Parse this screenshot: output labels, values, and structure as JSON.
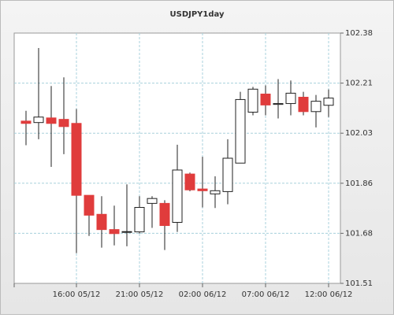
{
  "chart_data": {
    "type": "candlestick",
    "title": "USDJPY1day",
    "categories": [
      null,
      null,
      null,
      null,
      "16:00 05/12",
      null,
      null,
      null,
      null,
      "21:00 05/12",
      null,
      null,
      null,
      null,
      "02:00 06/12",
      null,
      null,
      null,
      null,
      "07:00 06/12",
      null,
      null,
      null,
      null,
      "12:00 06/12"
    ],
    "open": [
      102.074,
      102.069,
      102.085,
      102.08,
      102.066,
      101.816,
      101.75,
      101.697,
      101.688,
      101.689,
      101.788,
      101.788,
      101.722,
      101.89,
      101.838,
      101.821,
      101.829,
      101.928,
      102.105,
      102.168,
      102.132,
      102.135,
      102.157,
      102.107,
      102.129
    ],
    "high": [
      102.11,
      102.328,
      102.196,
      102.226,
      102.116,
      101.816,
      101.813,
      101.78,
      101.854,
      101.813,
      101.813,
      101.799,
      101.992,
      101.895,
      101.95,
      101.882,
      102.011,
      102.176,
      102.193,
      102.198,
      102.22,
      102.215,
      102.176,
      102.165,
      102.184
    ],
    "low": [
      101.99,
      102.011,
      101.915,
      101.959,
      101.615,
      101.675,
      101.634,
      101.642,
      101.639,
      101.683,
      101.703,
      101.626,
      101.689,
      101.83,
      101.774,
      101.772,
      101.785,
      101.928,
      102.094,
      102.094,
      102.083,
      102.094,
      102.094,
      102.052,
      102.088
    ],
    "close": [
      102.066,
      102.088,
      102.066,
      102.055,
      101.816,
      101.747,
      101.697,
      101.683,
      101.69,
      101.774,
      101.805,
      101.711,
      101.904,
      101.835,
      101.832,
      101.832,
      101.945,
      102.149,
      102.185,
      102.13,
      102.135,
      102.171,
      102.107,
      102.143,
      102.154
    ],
    "up_color": "#ffffff",
    "down_color": "#e03c3c",
    "ylim": [
      101.51,
      102.38
    ],
    "yticks": [
      101.51,
      {
        "value": 101.684,
        "label": "101.68"
      },
      {
        "value": 101.858,
        "label": "101.86"
      },
      {
        "value": 102.032,
        "label": "102.03"
      },
      {
        "value": 102.206,
        "label": "102.21"
      },
      102.38
    ],
    "grid": true
  }
}
